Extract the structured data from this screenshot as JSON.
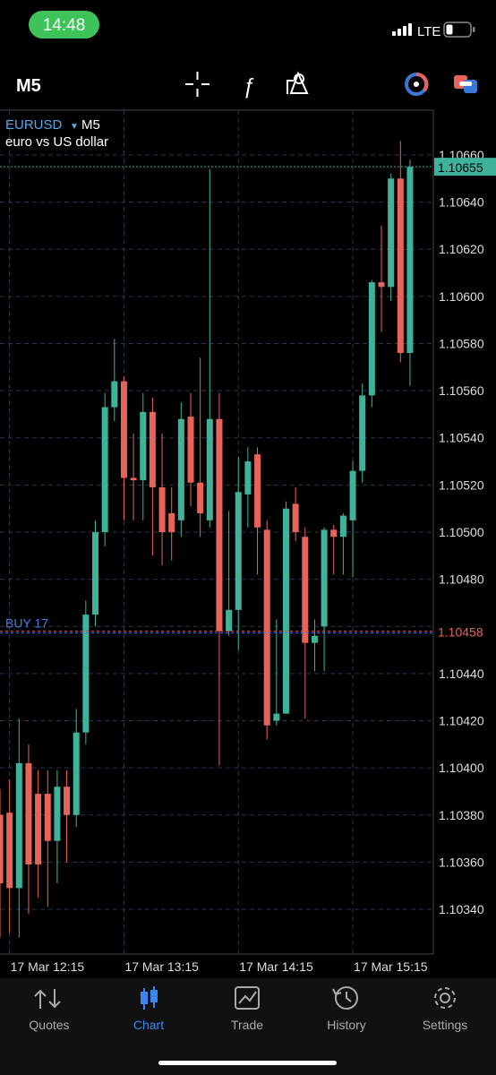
{
  "status": {
    "time": "14:48",
    "network": "LTE"
  },
  "toolbar": {
    "timeframe": "M5"
  },
  "chart_data": {
    "type": "candlestick",
    "symbol": "EURUSD",
    "timeframe": "M5",
    "description": "euro vs US dollar",
    "up_color": "#3fb39a",
    "down_color": "#e8645a",
    "grid": true,
    "categories": [
      null,
      "17 Mar 12:15",
      null,
      null,
      null,
      null,
      null,
      null,
      null,
      null,
      null,
      null,
      null,
      "17 Mar 13:15",
      null,
      null,
      null,
      null,
      null,
      null,
      null,
      null,
      null,
      null,
      null,
      "17 Mar 14:15",
      null,
      null,
      null,
      null,
      null,
      null,
      null,
      null,
      null,
      null,
      null,
      "17 Mar 15:15",
      null,
      null,
      null,
      null,
      null,
      null
    ],
    "open": [
      1.1038,
      1.10381,
      1.10349,
      1.10402,
      1.10389,
      1.10389,
      1.10369,
      1.10392,
      1.1038,
      1.10415,
      1.10465,
      1.105,
      1.10553,
      1.10564,
      1.10523,
      1.10522,
      1.10551,
      1.10519,
      1.10508,
      1.10505,
      1.10549,
      1.10521,
      1.10505,
      1.10548,
      1.10458,
      1.10467,
      1.10516,
      1.10533,
      1.10501,
      1.1042,
      1.10423,
      1.10512,
      1.10498,
      1.10453,
      1.1046,
      1.10501,
      1.10498,
      1.10505,
      1.10526,
      1.10558,
      1.10606,
      1.10604,
      1.1065,
      1.10576
    ],
    "high": [
      1.10391,
      1.10395,
      1.10421,
      1.1041,
      1.10399,
      1.10399,
      1.10399,
      1.10399,
      1.10425,
      1.10471,
      1.10505,
      1.10559,
      1.10582,
      1.10566,
      1.10542,
      1.10559,
      1.10557,
      1.10542,
      1.10519,
      1.10555,
      1.10559,
      1.10574,
      1.10654,
      1.10559,
      1.10509,
      1.10532,
      1.10536,
      1.10536,
      1.10505,
      1.10463,
      1.10513,
      1.10519,
      1.10502,
      1.10463,
      1.10502,
      1.10503,
      1.10508,
      1.1053,
      1.10563,
      1.10607,
      1.1063,
      1.10652,
      1.10666,
      1.10658
    ],
    "low": [
      1.10328,
      1.1033,
      1.10328,
      1.10338,
      1.10345,
      1.10341,
      1.10351,
      1.1036,
      1.10375,
      1.1041,
      1.1046,
      1.10494,
      1.10547,
      1.10505,
      1.10505,
      1.10505,
      1.1049,
      1.10486,
      1.10488,
      1.10498,
      1.10511,
      1.10498,
      1.10502,
      1.10401,
      1.10456,
      1.1045,
      1.10502,
      1.10482,
      1.10412,
      1.10418,
      1.10423,
      1.10496,
      1.10421,
      1.10441,
      1.10441,
      1.10482,
      1.10482,
      1.10481,
      1.10521,
      1.10553,
      1.10585,
      1.10598,
      1.10572,
      1.10562
    ],
    "close": [
      1.10351,
      1.10349,
      1.10402,
      1.10359,
      1.10359,
      1.10369,
      1.10392,
      1.1038,
      1.10415,
      1.10465,
      1.105,
      1.10553,
      1.10564,
      1.10523,
      1.10522,
      1.10551,
      1.10519,
      1.105,
      1.105,
      1.10548,
      1.10521,
      1.10508,
      1.10548,
      1.10458,
      1.10467,
      1.10517,
      1.1053,
      1.10502,
      1.10418,
      1.10423,
      1.1051,
      1.105,
      1.10453,
      1.10456,
      1.10501,
      1.10498,
      1.10507,
      1.10526,
      1.10558,
      1.10606,
      1.10604,
      1.1065,
      1.10576,
      1.10655
    ],
    "ylim": [
      1.10321,
      1.10679
    ],
    "yticks": [
      {
        "value": 1.1034,
        "label": "1.10340"
      },
      {
        "value": 1.1036,
        "label": "1.10360"
      },
      {
        "value": 1.1038,
        "label": "1.10380"
      },
      {
        "value": 1.104,
        "label": "1.10400"
      },
      {
        "value": 1.1042,
        "label": "1.10420"
      },
      {
        "value": 1.1044,
        "label": "1.10440"
      },
      {
        "value": 1.1046,
        "label": "1.10460"
      },
      {
        "value": 1.1048,
        "label": "1.10480"
      },
      {
        "value": 1.105,
        "label": "1.10500"
      },
      {
        "value": 1.1052,
        "label": "1.10520"
      },
      {
        "value": 1.1054,
        "label": "1.10540"
      },
      {
        "value": 1.1056,
        "label": "1.10560"
      },
      {
        "value": 1.1058,
        "label": "1.10580"
      },
      {
        "value": 1.106,
        "label": "1.10600"
      },
      {
        "value": 1.1062,
        "label": "1.10620"
      },
      {
        "value": 1.1064,
        "label": "1.10640"
      },
      {
        "value": 1.1066,
        "label": "1.10660"
      }
    ],
    "current_price": 1.10655,
    "buy_line": {
      "label": "BUY 17",
      "price": 1.10458
    }
  },
  "nav": {
    "items": [
      "Quotes",
      "Chart",
      "Trade",
      "History",
      "Settings"
    ],
    "active": "Chart"
  }
}
